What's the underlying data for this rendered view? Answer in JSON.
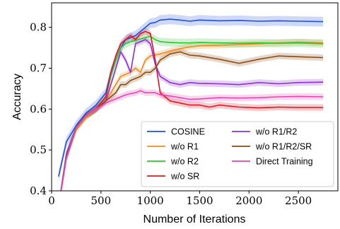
{
  "chart_data": {
    "type": "line",
    "title": "",
    "xlabel": "Number of Iterations",
    "ylabel": "Accuracy",
    "xlim": [
      0,
      2900
    ],
    "ylim": [
      0.4,
      0.86
    ],
    "xticks": [
      0,
      500,
      1000,
      1500,
      2000,
      2500
    ],
    "yticks": [
      0.4,
      0.5,
      0.6,
      0.7,
      0.8
    ],
    "xtick_labels": [
      "0",
      "500",
      "1000",
      "1500",
      "2000",
      "2500"
    ],
    "ytick_labels": [
      "0.4",
      "0.5",
      "0.6",
      "0.7",
      "0.8"
    ],
    "grid": false,
    "legend_position": "lower-right",
    "series": [
      {
        "name": "COSINE",
        "color": "#1f4fe0",
        "x": [
          70,
          150,
          250,
          350,
          450,
          550,
          600,
          650,
          700,
          750,
          800,
          850,
          900,
          950,
          1000,
          1050,
          1100,
          1200,
          1300,
          1400,
          1500,
          1700,
          1900,
          2100,
          2300,
          2500,
          2750
        ],
        "y": [
          0.435,
          0.52,
          0.56,
          0.59,
          0.61,
          0.64,
          0.69,
          0.72,
          0.75,
          0.77,
          0.775,
          0.78,
          0.79,
          0.8,
          0.81,
          0.812,
          0.818,
          0.82,
          0.818,
          0.815,
          0.818,
          0.816,
          0.817,
          0.815,
          0.816,
          0.815,
          0.814
        ],
        "band": 0.012
      },
      {
        "name": "w/o R1",
        "color": "#f28a1e",
        "x": [
          70,
          150,
          250,
          350,
          450,
          550,
          600,
          650,
          700,
          750,
          800,
          850,
          900,
          950,
          1000,
          1100,
          1200,
          1300,
          1400,
          1500,
          1700,
          1900,
          2100,
          2300,
          2500,
          2750
        ],
        "y": [
          0.36,
          0.48,
          0.55,
          0.58,
          0.6,
          0.62,
          0.64,
          0.66,
          0.68,
          0.685,
          0.69,
          0.7,
          0.69,
          0.72,
          0.73,
          0.735,
          0.742,
          0.748,
          0.752,
          0.755,
          0.756,
          0.758,
          0.76,
          0.762,
          0.764,
          0.762
        ],
        "band": 0.008
      },
      {
        "name": "w/o R2",
        "color": "#2ec42e",
        "x": [
          70,
          150,
          250,
          350,
          450,
          550,
          600,
          650,
          700,
          750,
          800,
          850,
          900,
          950,
          1000,
          1050,
          1100,
          1200,
          1300,
          1400,
          1500,
          1700,
          1900,
          2100,
          2300,
          2500,
          2750
        ],
        "y": [
          0.36,
          0.49,
          0.555,
          0.585,
          0.6,
          0.63,
          0.68,
          0.72,
          0.75,
          0.76,
          0.765,
          0.768,
          0.772,
          0.775,
          0.778,
          0.77,
          0.765,
          0.763,
          0.762,
          0.762,
          0.763,
          0.762,
          0.761,
          0.762,
          0.761,
          0.762,
          0.76
        ],
        "band": 0.01
      },
      {
        "name": "w/o SR",
        "color": "#e0151f",
        "x": [
          70,
          150,
          250,
          350,
          450,
          550,
          600,
          650,
          700,
          750,
          800,
          850,
          900,
          950,
          1000,
          1050,
          1100,
          1200,
          1300,
          1400,
          1500,
          1600,
          1700,
          1900,
          2100,
          2300,
          2500,
          2750
        ],
        "y": [
          0.36,
          0.49,
          0.555,
          0.585,
          0.6,
          0.63,
          0.69,
          0.73,
          0.76,
          0.77,
          0.78,
          0.77,
          0.785,
          0.79,
          0.785,
          0.72,
          0.64,
          0.62,
          0.615,
          0.61,
          0.61,
          0.605,
          0.61,
          0.605,
          0.603,
          0.605,
          0.604,
          0.604
        ],
        "band": 0.008
      },
      {
        "name": "w/o R1/R2",
        "color": "#8f2fd6",
        "x": [
          70,
          150,
          250,
          350,
          450,
          550,
          600,
          650,
          700,
          750,
          800,
          850,
          900,
          950,
          1000,
          1050,
          1100,
          1200,
          1300,
          1400,
          1500,
          1700,
          1900,
          2100,
          2300,
          2500,
          2750
        ],
        "y": [
          0.36,
          0.49,
          0.555,
          0.585,
          0.6,
          0.62,
          0.66,
          0.7,
          0.74,
          0.72,
          0.69,
          0.76,
          0.765,
          0.77,
          0.76,
          0.71,
          0.68,
          0.665,
          0.66,
          0.665,
          0.663,
          0.662,
          0.66,
          0.665,
          0.662,
          0.665,
          0.666
        ],
        "band": 0.008
      },
      {
        "name": "w/o R1/R2/SR",
        "color": "#8b4a12",
        "x": [
          70,
          150,
          250,
          350,
          450,
          550,
          600,
          650,
          700,
          750,
          800,
          850,
          900,
          950,
          1000,
          1050,
          1100,
          1200,
          1300,
          1400,
          1500,
          1700,
          1900,
          2100,
          2300,
          2500,
          2750
        ],
        "y": [
          0.36,
          0.48,
          0.555,
          0.585,
          0.6,
          0.62,
          0.63,
          0.64,
          0.66,
          0.66,
          0.67,
          0.675,
          0.68,
          0.69,
          0.69,
          0.7,
          0.72,
          0.735,
          0.74,
          0.732,
          0.73,
          0.722,
          0.712,
          0.722,
          0.73,
          0.728,
          0.726
        ],
        "band": 0.008
      },
      {
        "name": "Direct Training",
        "color": "#e845b0",
        "x": [
          70,
          150,
          250,
          350,
          450,
          550,
          600,
          650,
          700,
          750,
          800,
          850,
          900,
          950,
          1000,
          1050,
          1100,
          1200,
          1300,
          1400,
          1500,
          1700,
          1900,
          2100,
          2300,
          2500,
          2750
        ],
        "y": [
          0.36,
          0.48,
          0.555,
          0.585,
          0.6,
          0.615,
          0.62,
          0.625,
          0.63,
          0.635,
          0.638,
          0.64,
          0.645,
          0.64,
          0.64,
          0.64,
          0.635,
          0.632,
          0.628,
          0.624,
          0.625,
          0.628,
          0.627,
          0.628,
          0.63,
          0.631,
          0.63
        ],
        "band": 0.008
      }
    ],
    "legend_entries": [
      {
        "label": "COSINE",
        "color": "#1f4fe0"
      },
      {
        "label": "w/o R1/R2",
        "color": "#8f2fd6"
      },
      {
        "label": "w/o R1",
        "color": "#f28a1e"
      },
      {
        "label": "w/o R1/R2/SR",
        "color": "#8b4a12"
      },
      {
        "label": "w/o R2",
        "color": "#2ec42e"
      },
      {
        "label": "Direct Training",
        "color": "#e845b0"
      },
      {
        "label": "w/o SR",
        "color": "#e0151f"
      }
    ]
  }
}
